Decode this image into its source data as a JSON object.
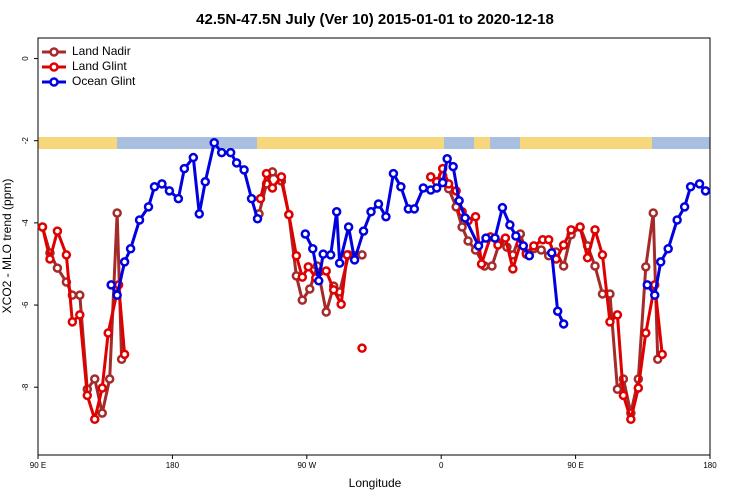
{
  "chart_data": {
    "type": "line",
    "title": "42.5N-47.5N July (Ver 10)   2015-01-01 to 2020-12-18",
    "x_label": "Longitude",
    "y_label": "XCO2 - MLO trend (ppm)",
    "xlim": [
      90,
      540
    ],
    "ylim": [
      -9.65,
      0.5
    ],
    "xticks": [
      {
        "value": 90,
        "label": "90 E"
      },
      180,
      {
        "value": 270,
        "label": "90 W"
      },
      {
        "value": 360,
        "label": "0"
      },
      {
        "value": 450,
        "label": "90 E"
      },
      {
        "value": 540,
        "label": "180"
      }
    ],
    "yticks": [
      0,
      -2,
      -4,
      -6,
      -8
    ],
    "legend": "top-left",
    "series": [
      {
        "name": "Land Nadir",
        "color": "#a52a2a",
        "x": [
          93,
          98,
          103,
          109,
          113,
          118,
          123,
          128,
          133,
          138,
          143,
          146,
          null,
          238,
          243,
          247,
          253,
          258,
          263,
          267,
          272,
          277,
          283,
          288,
          292,
          298,
          302,
          307,
          null,
          353,
          357,
          361,
          365,
          370,
          374,
          378,
          383,
          389,
          394,
          399,
          404,
          408,
          413,
          417,
          422,
          427,
          432,
          437,
          442,
          447,
          453,
          458,
          463,
          468,
          473,
          478,
          482,
          487,
          492,
          497,
          502,
          505
        ],
        "values": [
          -4.1,
          -4.73,
          -5.1,
          -5.44,
          -5.76,
          -5.76,
          -8.05,
          -7.8,
          -8.63,
          -7.8,
          -3.76,
          -7.32,
          null,
          -3.78,
          -3.05,
          -2.76,
          -2.98,
          -3.8,
          -5.29,
          -5.88,
          -5.61,
          -5.05,
          -6.17,
          -5.54,
          -5.68,
          -4.78,
          -4.8,
          -4.78,
          null,
          -2.88,
          -3.0,
          -2.85,
          -3.17,
          -3.61,
          -4.1,
          -4.44,
          -4.66,
          -5.05,
          -5.05,
          -4.49,
          -4.59,
          -4.78,
          -4.27,
          -4.73,
          -4.63,
          -4.66,
          -4.8,
          -4.71,
          -5.05,
          -4.29,
          -4.1,
          -4.56,
          -5.05,
          -5.73,
          -5.73,
          -8.05,
          -7.8,
          -8.63,
          -7.8,
          -5.07,
          -3.76,
          -7.32
        ]
      },
      {
        "name": "Land Glint",
        "color": "#e00000",
        "x": [
          93,
          98,
          103,
          109,
          113,
          118,
          123,
          128,
          133,
          137,
          144,
          148,
          null,
          239,
          243,
          247,
          253,
          258,
          263,
          267,
          271,
          276,
          283,
          288,
          293,
          297,
          null,
          307,
          null,
          353,
          357,
          361,
          365,
          370,
          374,
          378,
          383,
          387,
          393,
          398,
          403,
          408,
          413,
          417,
          422,
          428,
          432,
          437,
          442,
          447,
          453,
          458,
          463,
          468,
          473,
          478,
          482,
          487,
          492,
          497,
          503,
          508
        ],
        "values": [
          -4.1,
          -4.88,
          -4.2,
          -4.78,
          -6.41,
          -6.24,
          -8.2,
          -8.78,
          -8.02,
          -6.68,
          -5.51,
          -7.2,
          null,
          -3.41,
          -2.8,
          -3.15,
          -2.88,
          -3.8,
          -4.8,
          -5.32,
          -5.07,
          -5.34,
          -5.17,
          -5.63,
          -5.98,
          -4.78,
          null,
          -7.05,
          null,
          -2.88,
          -3.0,
          -2.68,
          -3.05,
          -3.22,
          -3.73,
          -3.95,
          -3.85,
          -5.0,
          -4.34,
          -4.54,
          -4.37,
          -5.12,
          -4.51,
          -4.76,
          -4.56,
          -4.41,
          -4.41,
          -4.88,
          -4.54,
          -4.17,
          -4.1,
          -4.85,
          -4.17,
          -4.78,
          -6.41,
          -6.24,
          -8.2,
          -8.78,
          -8.02,
          -6.68,
          -5.51,
          -7.2
        ]
      },
      {
        "name": "Ocean Glint",
        "color": "#0000e0",
        "x": [
          139,
          143,
          148,
          152,
          158,
          164,
          168,
          173,
          178,
          184,
          188,
          194,
          198,
          202,
          208,
          213,
          219,
          223,
          228,
          233,
          237,
          null,
          269,
          274,
          278,
          281,
          286,
          290,
          292,
          298,
          302,
          308,
          313,
          318,
          323,
          328,
          333,
          338,
          342,
          348,
          353,
          357,
          361,
          364,
          368,
          372,
          376,
          385,
          390,
          396,
          401,
          406,
          410,
          415,
          419,
          null,
          434,
          438,
          442,
          null,
          498,
          503,
          507,
          512,
          518,
          523,
          527,
          533,
          537
        ],
        "values": [
          -5.51,
          -5.76,
          -4.95,
          -4.63,
          -3.93,
          -3.61,
          -3.12,
          -3.05,
          -3.22,
          -3.41,
          -2.68,
          -2.41,
          -3.78,
          -3.0,
          -2.05,
          -2.29,
          -2.29,
          -2.54,
          -2.71,
          -3.41,
          -3.9,
          null,
          -4.27,
          -4.63,
          -5.41,
          -4.76,
          -4.78,
          -3.73,
          -4.98,
          -4.1,
          -4.9,
          -4.2,
          -3.73,
          -3.54,
          -3.85,
          -2.8,
          -3.12,
          -3.66,
          -3.66,
          -3.15,
          -3.2,
          -3.15,
          -3.02,
          -2.44,
          -2.63,
          -3.46,
          -3.88,
          -4.56,
          -4.37,
          -4.37,
          -3.63,
          -4.05,
          -4.32,
          -4.56,
          -4.8,
          null,
          -4.73,
          -6.15,
          -6.46,
          null,
          -5.51,
          -5.76,
          -4.95,
          -4.63,
          -3.93,
          -3.61,
          -3.12,
          -3.05,
          -3.22
        ]
      }
    ]
  }
}
